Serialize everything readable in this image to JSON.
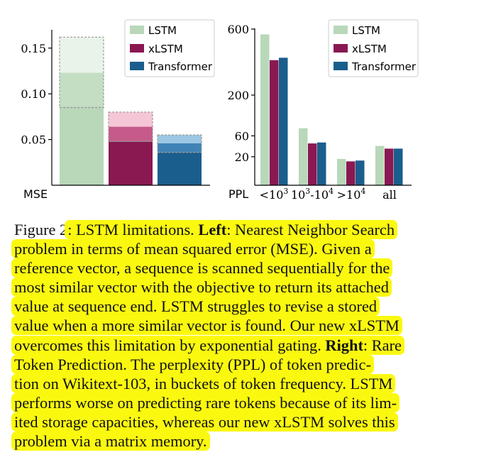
{
  "colors": {
    "lstm": "#b8d8b9",
    "lstm_light": "#e9f3e9",
    "xlstm": "#8a1851",
    "xlstm_mid": "#c65a8a",
    "xlstm_light": "#f5c6d6",
    "transformer": "#1a5e8d",
    "transformer_mid": "#3f83b6",
    "transformer_light": "#9cc7e4",
    "highlight": "#fbf810"
  },
  "chart_data": [
    {
      "type": "bar",
      "title": "",
      "xlabel": "",
      "ylabel": "MSE",
      "ylim": [
        0,
        0.17
      ],
      "yticks": [
        0.05,
        0.1,
        0.15
      ],
      "ytick_labels": [
        "0.05",
        "0.10",
        "0.15"
      ],
      "legend": [
        "LSTM",
        "xLSTM",
        "Transformer"
      ],
      "legend_position": "top-right",
      "series": [
        {
          "name": "LSTM",
          "lower": 0.085,
          "median": 0.123,
          "upper": 0.162
        },
        {
          "name": "xLSTM",
          "lower": 0.048,
          "median": 0.064,
          "upper": 0.08
        },
        {
          "name": "Transformer",
          "lower": 0.036,
          "median": 0.046,
          "upper": 0.055
        }
      ]
    },
    {
      "type": "bar",
      "title": "",
      "xlabel": "",
      "ylabel": "PPL",
      "ylim": [
        0,
        600
      ],
      "yticks": [
        20,
        60,
        200,
        600
      ],
      "ytick_labels": [
        "20",
        "60",
        "200",
        "600"
      ],
      "legend": [
        "LSTM",
        "xLSTM",
        "Transformer"
      ],
      "legend_position": "top-right",
      "categories": [
        "<10^3",
        "10^3-10^4",
        ">10^4",
        "all"
      ],
      "series": [
        {
          "name": "LSTM",
          "values": [
            560,
            80,
            17,
            38
          ]
        },
        {
          "name": "xLSTM",
          "values": [
            385,
            43,
            14,
            33
          ]
        },
        {
          "name": "Transformer",
          "values": [
            400,
            45,
            15,
            33
          ]
        }
      ]
    }
  ],
  "caption": {
    "label": "Figure 2",
    "lines": [
      [
        {
          "t": ": LSTM limitations. "
        },
        {
          "t": "Left",
          "b": true
        },
        {
          "t": ": Nearest Neighbor Search"
        }
      ],
      [
        {
          "t": "problem in terms of mean squared error (MSE). Given a"
        }
      ],
      [
        {
          "t": "reference vector, a sequence is scanned sequentially for the"
        }
      ],
      [
        {
          "t": "most similar vector with the objective to return its attached"
        }
      ],
      [
        {
          "t": "value at sequence end. LSTM struggles to revise a stored"
        }
      ],
      [
        {
          "t": "value when a more similar vector is found. Our new xLSTM"
        }
      ],
      [
        {
          "t": "overcomes this limitation by exponential gating. "
        },
        {
          "t": "Right",
          "b": true
        },
        {
          "t": ": Rare"
        }
      ],
      [
        {
          "t": "Token Prediction. The perplexity (PPL) of token predic-"
        }
      ],
      [
        {
          "t": "tion on Wikitext-103, in buckets of token frequency. LSTM"
        }
      ],
      [
        {
          "t": "performs worse on predicting rare tokens because of its lim-"
        }
      ],
      [
        {
          "t": "ited storage capacities, whereas our new xLSTM solves this"
        }
      ],
      [
        {
          "t": "problem via a matrix memory."
        }
      ]
    ]
  }
}
